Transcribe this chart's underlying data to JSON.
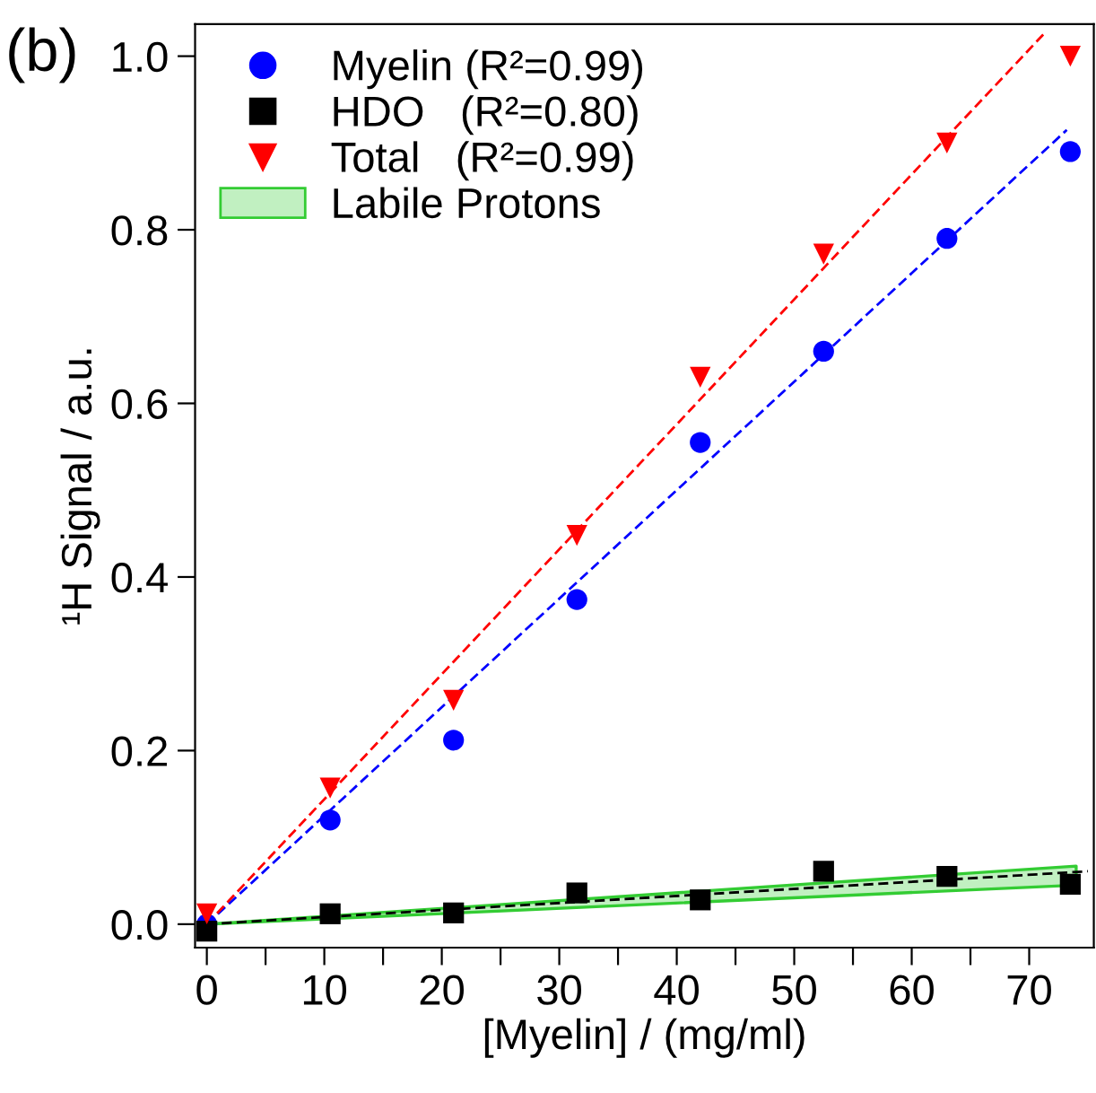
{
  "chart_data": {
    "type": "scatter",
    "title": "(b)",
    "xlabel": "[Myelin] / (mg/ml)",
    "ylabel": "¹H Signal / a.u.",
    "x": [
      0,
      10.5,
      21,
      31.5,
      42,
      52.5,
      63,
      73.5
    ],
    "series": [
      {
        "name": "Myelin (R²=0.99)",
        "color": "#0000ff",
        "marker": "circle",
        "values": [
          0.0,
          0.12,
          0.212,
          0.374,
          0.555,
          0.66,
          0.79,
          0.89
        ]
      },
      {
        "name": "HDO   (R²=0.80)",
        "color": "#000000",
        "marker": "square",
        "values": [
          -0.008,
          0.012,
          0.013,
          0.036,
          0.028,
          0.061,
          0.055,
          0.046
        ]
      },
      {
        "name": "Total   (R²=0.99)",
        "color": "#ff0000",
        "marker": "triangle",
        "values": [
          0.012,
          0.157,
          0.258,
          0.448,
          0.63,
          0.772,
          0.9,
          1.0
        ]
      },
      {
        "name": "Labile Protons",
        "type": "area",
        "color": "#33cc33",
        "x": [
          0,
          74
        ],
        "values": [
          null,
          null
        ],
        "lower": [
          0,
          0.045
        ],
        "upper": [
          0,
          0.067
        ]
      },
      {
        "type": "line",
        "color": "#0000ff",
        "line_style": "dashed",
        "marker": "none",
        "x": [
          0,
          73.2
        ],
        "values": [
          0,
          0.915
        ]
      },
      {
        "type": "line",
        "color": "#000000",
        "line_style": "dashed",
        "marker": "none",
        "x": [
          0,
          75
        ],
        "values": [
          0,
          0.061
        ]
      },
      {
        "type": "line",
        "color": "#ff0000",
        "line_style": "dashed",
        "marker": "none",
        "x": [
          0,
          71.2
        ],
        "values": [
          0,
          1.025
        ]
      }
    ],
    "xlim": [
      -1,
      75.5
    ],
    "ylim": [
      -0.027,
      1.037
    ],
    "xticks": [
      0,
      {
        "value": 5,
        "label": null
      },
      10,
      {
        "value": 15,
        "label": null
      },
      20,
      {
        "value": 25,
        "label": null
      },
      30,
      {
        "value": 35,
        "label": null
      },
      40,
      {
        "value": 45,
        "label": null
      },
      50,
      {
        "value": 55,
        "label": null
      },
      60,
      {
        "value": 65,
        "label": null
      },
      70
    ],
    "yticks": [
      {
        "value": 0,
        "label": "0.0"
      },
      0.2,
      0.4,
      0.6,
      0.8,
      {
        "value": 1,
        "label": "1.0"
      }
    ],
    "grid": false,
    "legend": "top left"
  }
}
